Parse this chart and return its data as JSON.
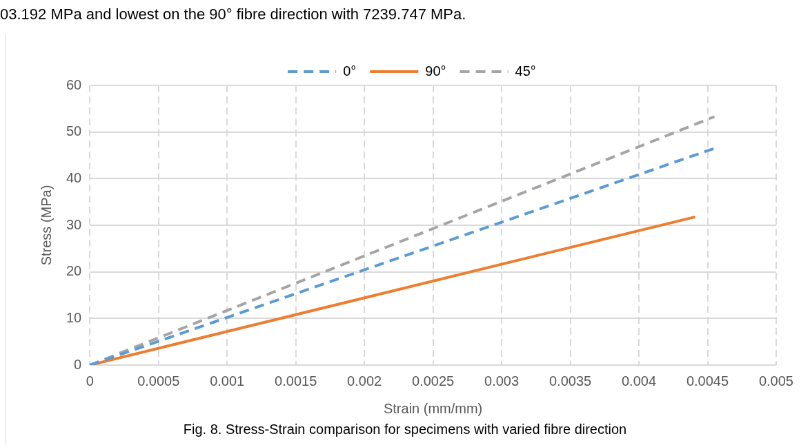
{
  "chart_data": {
    "type": "line",
    "xlabel": "Strain (mm/mm)",
    "ylabel": "Stress (MPa)",
    "annotations": [
      "03.192 MPa and lowest on the 90° fibre direction with 7239.747 MPa.",
      "Fig. 8. Stress-Strain comparison for specimens with varied fibre direction"
    ],
    "series": [
      {
        "name": "0°",
        "color": "#5b9bd5",
        "line_style": "dashed",
        "x": [
          0,
          0.00456
        ],
        "values": [
          0,
          46.6
        ]
      },
      {
        "name": "90°",
        "color": "#ed7d31",
        "line_style": "solid",
        "x": [
          0,
          0.00441
        ],
        "values": [
          0,
          31.8
        ]
      },
      {
        "name": "45°",
        "color": "#a5a5a5",
        "line_style": "dashed",
        "x": [
          0,
          0.00455
        ],
        "values": [
          0,
          53.3
        ]
      }
    ],
    "xlim": [
      0,
      0.005
    ],
    "xticks": [
      0,
      0.0005,
      0.001,
      0.0015,
      0.002,
      0.0025,
      0.003,
      0.0035,
      0.004,
      0.0045,
      0.005
    ],
    "ylim": [
      0,
      60
    ],
    "yticks": [
      0,
      10,
      20,
      30,
      40,
      50,
      60
    ],
    "grid": true,
    "legend": "top",
    "marker": "none"
  }
}
